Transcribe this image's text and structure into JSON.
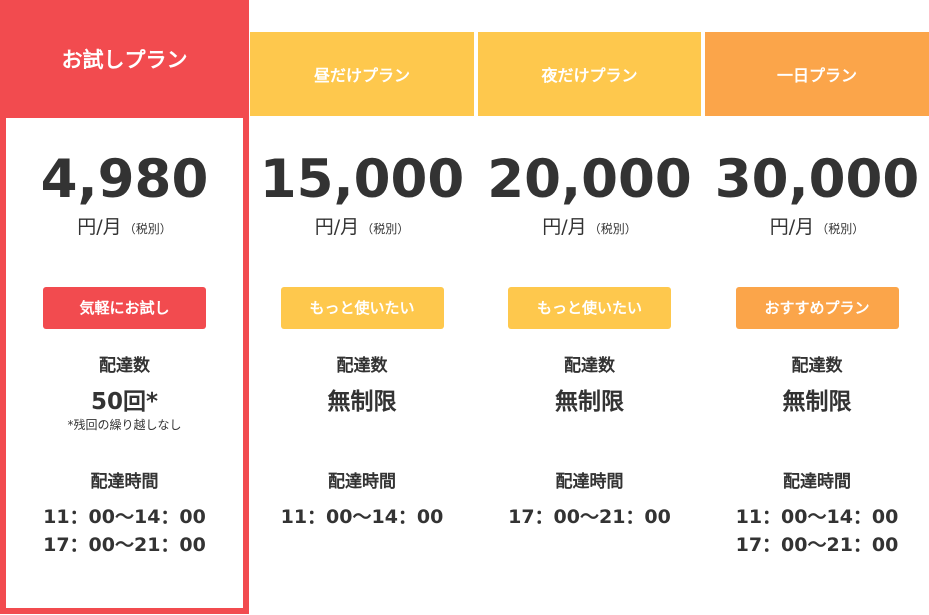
{
  "plans": [
    {
      "name": "お試しプラン",
      "price": "4,980",
      "unit": "円/月",
      "tax": "（税別）",
      "cta": "気軽にお試し",
      "count_label": "配達数",
      "count": "50回*",
      "note": "*残回の繰り越しなし",
      "time_label": "配達時間",
      "times": [
        "11：00〜14：00",
        "17：00〜21：00"
      ],
      "header_color": "#f24b4f",
      "button_color": "#f24b4f"
    },
    {
      "name": "昼だけプラン",
      "price": "15,000",
      "unit": "円/月",
      "tax": "（税別）",
      "cta": "もっと使いたい",
      "count_label": "配達数",
      "count": "無制限",
      "note": "",
      "time_label": "配達時間",
      "times": [
        "11：00〜14：00"
      ],
      "header_color": "#fec84d",
      "button_color": "#fec84d"
    },
    {
      "name": "夜だけプラン",
      "price": "20,000",
      "unit": "円/月",
      "tax": "（税別）",
      "cta": "もっと使いたい",
      "count_label": "配達数",
      "count": "無制限",
      "note": "",
      "time_label": "配達時間",
      "times": [
        "17：00〜21：00"
      ],
      "header_color": "#fec84d",
      "button_color": "#fec84d"
    },
    {
      "name": "一日プラン",
      "price": "30,000",
      "unit": "円/月",
      "tax": "（税別）",
      "cta": "おすすめプラン",
      "count_label": "配達数",
      "count": "無制限",
      "note": "",
      "time_label": "配達時間",
      "times": [
        "11：00〜14：00",
        "17：00〜21：00"
      ],
      "header_color": "#fba54a",
      "button_color": "#fba54a"
    }
  ]
}
